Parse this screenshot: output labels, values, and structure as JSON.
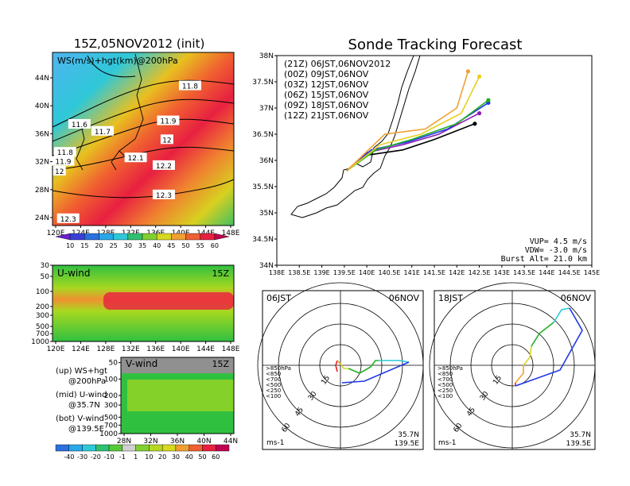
{
  "main": {
    "title": "Sonde Tracking Forecast",
    "vup": "VUP= 4.5 m/s",
    "vdw": "VDW= -3.0 m/s",
    "burst": "Burst Alt= 21.0 km"
  },
  "left": {
    "title": "15Z,05NOV2012 (init)",
    "map_label": "WS(m/s)+hgt(km)@200hPa",
    "u_label": "U-wind",
    "u_time": "15Z",
    "v_label": "V-wind",
    "v_time": "15Z",
    "notes": [
      {
        "a": "(up) WS+hgt",
        "b": "@200hPa"
      },
      {
        "a": "(mid) U-wind",
        "b": "@35.7N"
      },
      {
        "a": "(bot) V-wind",
        "b": "@139.5E"
      }
    ]
  },
  "chart_data": [
    {
      "type": "heatmap",
      "title": "15Z,05NOV2012 (init)",
      "label": "WS(m/s)+hgt(km)@200hPa",
      "x_ticks": [
        "120E",
        "124E",
        "128E",
        "132E",
        "136E",
        "140E",
        "144E",
        "148E"
      ],
      "y_ticks": [
        "24N",
        "28N",
        "32N",
        "36N",
        "40N",
        "44N"
      ],
      "contour_labels": [
        {
          "text": "11.8",
          "lon": 141.5,
          "lat": 42.8
        },
        {
          "text": "11.6",
          "lon": 123.8,
          "lat": 37.3
        },
        {
          "text": "11.7",
          "lon": 127.5,
          "lat": 36.3
        },
        {
          "text": "11.9",
          "lon": 138.0,
          "lat": 37.8
        },
        {
          "text": "12",
          "lon": 137.8,
          "lat": 35.1
        },
        {
          "text": "12.1",
          "lon": 132.8,
          "lat": 32.5
        },
        {
          "text": "11.8",
          "lon": 121.5,
          "lat": 33.3
        },
        {
          "text": "11.9",
          "lon": 121.2,
          "lat": 32.0
        },
        {
          "text": "12",
          "lon": 120.6,
          "lat": 30.6
        },
        {
          "text": "12.2",
          "lon": 137.3,
          "lat": 31.4
        },
        {
          "text": "12.3",
          "lon": 137.3,
          "lat": 27.2
        },
        {
          "text": "12.3",
          "lon": 122.0,
          "lat": 23.8
        }
      ],
      "colorbar": {
        "values": [
          "10",
          "15",
          "20",
          "25",
          "30",
          "35",
          "40",
          "45",
          "50",
          "55",
          "60"
        ],
        "colors": [
          "#6a1fd0",
          "#3a3fd8",
          "#2a70e0",
          "#28a8e8",
          "#2fc8d8",
          "#30c070",
          "#80d030",
          "#d8d820",
          "#f0a030",
          "#f06030",
          "#e82040",
          "#c00050"
        ]
      }
    },
    {
      "type": "heatmap",
      "label": "U-wind",
      "time": "15Z",
      "x_ticks": [
        "120E",
        "124E",
        "128E",
        "132E",
        "136E",
        "140E",
        "144E",
        "148E"
      ],
      "y_ticks": [
        "30",
        "50",
        "100",
        "200",
        "300",
        "500",
        "700",
        "1000"
      ]
    },
    {
      "type": "heatmap",
      "label": "V-wind",
      "time": "15Z",
      "x_ticks": [
        "28N",
        "32N",
        "36N",
        "40N",
        "44N"
      ],
      "y_ticks": [
        "50",
        "100",
        "200",
        "300",
        "500",
        "700",
        "1000"
      ],
      "colorbar": {
        "values": [
          "-40",
          "-30",
          "-20",
          "-10",
          "-1",
          "1",
          "10",
          "20",
          "30",
          "40",
          "50",
          "60"
        ],
        "colors": [
          "#2a70e0",
          "#28a8e8",
          "#2fc8d8",
          "#30c070",
          "#58c838",
          "#d0d0d0",
          "#80d030",
          "#b8d820",
          "#d8d820",
          "#f0a030",
          "#f06030",
          "#e82040",
          "#c00050"
        ]
      }
    },
    {
      "type": "line",
      "title": "Sonde Tracking Forecast",
      "x_ticks": [
        "138E",
        "138.5E",
        "139E",
        "139.5E",
        "140E",
        "140.5E",
        "141E",
        "141.5E",
        "142E",
        "142.5E",
        "143E",
        "143.5E",
        "144E",
        "144.5E",
        "145E"
      ],
      "y_ticks": [
        "34N",
        "34.5N",
        "35N",
        "35.5N",
        "36N",
        "36.5N",
        "37N",
        "37.5N",
        "38N"
      ],
      "xlim": [
        138,
        145
      ],
      "ylim": [
        34,
        38
      ],
      "series": [
        {
          "name": "(21Z) 06JST,06NOV2012",
          "color": "#000000",
          "lon": [
            139.55,
            140.0,
            140.8,
            141.5,
            142.4
          ],
          "lat": [
            35.8,
            36.1,
            36.2,
            36.4,
            36.7
          ]
        },
        {
          "name": "(00Z) 09JST,06NOV",
          "color": "#8a1fb8",
          "lon": [
            139.55,
            140.0,
            140.8,
            141.6,
            142.5
          ],
          "lat": [
            35.8,
            36.15,
            36.3,
            36.5,
            36.9
          ]
        },
        {
          "name": "(03Z) 12JST,06NOV",
          "color": "#1f38e8",
          "lon": [
            139.55,
            140.1,
            140.9,
            141.8,
            142.7
          ],
          "lat": [
            35.8,
            36.2,
            36.35,
            36.6,
            37.1
          ]
        },
        {
          "name": "(06Z) 15JST,06NOV",
          "color": "#20b020",
          "lon": [
            139.55,
            140.2,
            141.0,
            142.0,
            142.7
          ],
          "lat": [
            35.8,
            36.2,
            36.4,
            36.7,
            37.15
          ]
        },
        {
          "name": "(09Z) 18JST,06NOV",
          "color": "#e8d020",
          "lon": [
            139.55,
            140.3,
            141.2,
            142.1,
            142.5
          ],
          "lat": [
            35.8,
            36.3,
            36.5,
            36.9,
            37.6
          ]
        },
        {
          "name": "(12Z) 21JST,06NOV",
          "color": "#f0a030",
          "lon": [
            139.55,
            140.4,
            141.3,
            142.0,
            142.25
          ],
          "lat": [
            35.8,
            36.5,
            36.6,
            37.0,
            37.7
          ]
        }
      ]
    },
    {
      "type": "line",
      "name": "hodograph",
      "header_left": "06JST",
      "header_right": "06NOV",
      "loc": [
        "35.7N",
        "139.5E"
      ],
      "units": "ms-1",
      "ring_labels": [
        "15",
        "30",
        "45",
        "60"
      ],
      "levels": [
        ">850hPa",
        "<850",
        "<700",
        "<500",
        "<250",
        "<100"
      ],
      "level_colors": [
        "#e82020",
        "#f0a030",
        "#d8d820",
        "#20b020",
        "#28c8d8",
        "#1f38e8"
      ]
    },
    {
      "type": "line",
      "name": "hodograph",
      "header_left": "18JST",
      "header_right": "06NOV",
      "loc": [
        "35.7N",
        "139.5E"
      ],
      "units": "ms-1",
      "ring_labels": [
        "15",
        "30",
        "45",
        "60"
      ],
      "levels": [
        ">850hPa",
        "<850",
        "<700",
        "<500",
        "<250",
        "<100"
      ],
      "level_colors": [
        "#e82020",
        "#f0a030",
        "#d8d820",
        "#20b020",
        "#28c8d8",
        "#1f38e8"
      ]
    }
  ]
}
